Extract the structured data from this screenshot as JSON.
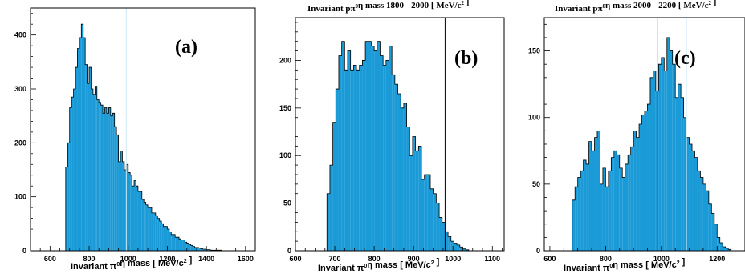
{
  "chart_data": [
    {
      "type": "bar",
      "panel_tag": "(a)",
      "title": "",
      "xlabel": {
        "pre": "Invariant π",
        "sup": "0",
        "mid": "η mass  [ MeV/c",
        "sup2": "2",
        "post": " ]"
      },
      "xlim": [
        500,
        1650
      ],
      "ylim": [
        0,
        450
      ],
      "xticks": [
        600,
        800,
        1000,
        1200,
        1400,
        1600
      ],
      "yticks": [
        0,
        100,
        200,
        300,
        400
      ],
      "bin_start": 680,
      "bin_width": 10,
      "values": [
        155,
        200,
        265,
        285,
        300,
        340,
        375,
        395,
        420,
        395,
        345,
        310,
        340,
        300,
        290,
        305,
        280,
        275,
        270,
        255,
        265,
        255,
        265,
        250,
        255,
        230,
        215,
        165,
        185,
        165,
        150,
        160,
        145,
        140,
        120,
        130,
        120,
        110,
        110,
        95,
        90,
        85,
        80,
        80,
        70,
        70,
        65,
        60,
        55,
        50,
        45,
        45,
        40,
        35,
        30,
        30,
        25,
        25,
        22,
        20,
        20,
        16,
        14,
        12,
        10,
        8,
        6,
        6,
        5,
        4,
        3,
        3,
        2,
        2,
        1,
        1,
        1,
        1,
        1,
        1,
        0,
        0,
        0,
        0,
        0,
        0,
        0,
        0,
        0,
        0,
        0,
        0
      ],
      "marker_lines": [
        {
          "x": 990,
          "style": "faint"
        }
      ],
      "fill_color": "#1a9ad6"
    },
    {
      "type": "bar",
      "panel_tag": "(b)",
      "title": {
        "pre": "Invariant pπ",
        "sup": "0",
        "mid": "η mass 1800 - 2000  [ MeV/c",
        "sup2": "2",
        "post": " ]"
      },
      "xlabel": {
        "pre": "Invariant π",
        "sup": "0",
        "mid": "η mass  [ MeV/c",
        "sup2": "2",
        "post": " ]"
      },
      "xlim": [
        600,
        1130
      ],
      "ylim": [
        0,
        245
      ],
      "xticks": [
        600,
        700,
        800,
        900,
        1000,
        1100
      ],
      "yticks": [
        0,
        50,
        100,
        150,
        200
      ],
      "bin_start": 680,
      "bin_width": 7.5,
      "values": [
        60,
        90,
        135,
        170,
        205,
        220,
        190,
        210,
        190,
        195,
        190,
        195,
        200,
        220,
        220,
        215,
        210,
        220,
        205,
        195,
        200,
        215,
        185,
        175,
        165,
        150,
        155,
        130,
        100,
        120,
        105,
        110,
        75,
        80,
        80,
        65,
        60,
        50,
        35,
        30,
        20,
        15,
        10,
        8,
        6,
        4,
        2,
        1,
        0,
        0,
        0
      ],
      "marker_lines": [
        {
          "x": 980,
          "style": "solid"
        }
      ],
      "fill_color": "#1a9ad6"
    },
    {
      "type": "bar",
      "panel_tag": "(c)",
      "title": {
        "pre": "Invariant pπ",
        "sup": "0",
        "mid": "η mass 2000 - 2200  [ MeV/c",
        "sup2": "2",
        "post": " ]"
      },
      "xlabel": {
        "pre": "Invariant π",
        "sup": "0",
        "mid": "η mass  [ MeV/c",
        "sup2": "2",
        "post": " ]"
      },
      "xlim": [
        580,
        1300
      ],
      "ylim": [
        0,
        175
      ],
      "xticks": [
        600,
        800,
        1000,
        1200
      ],
      "yticks": [
        0,
        50,
        100,
        150
      ],
      "bin_start": 680,
      "bin_width": 10,
      "values": [
        38,
        48,
        55,
        60,
        68,
        65,
        82,
        75,
        85,
        90,
        50,
        62,
        48,
        60,
        70,
        75,
        72,
        62,
        55,
        65,
        72,
        78,
        90,
        85,
        95,
        102,
        105,
        110,
        130,
        135,
        120,
        140,
        145,
        135,
        160,
        150,
        140,
        115,
        125,
        115,
        100,
        85,
        80,
        75,
        70,
        60,
        55,
        50,
        45,
        35,
        28,
        20,
        10,
        6,
        3,
        2,
        1,
        0,
        0,
        0
      ],
      "marker_lines": [
        {
          "x": 985,
          "style": "solid"
        },
        {
          "x": 1090,
          "style": "faint"
        }
      ],
      "fill_color": "#1a9ad6"
    }
  ]
}
